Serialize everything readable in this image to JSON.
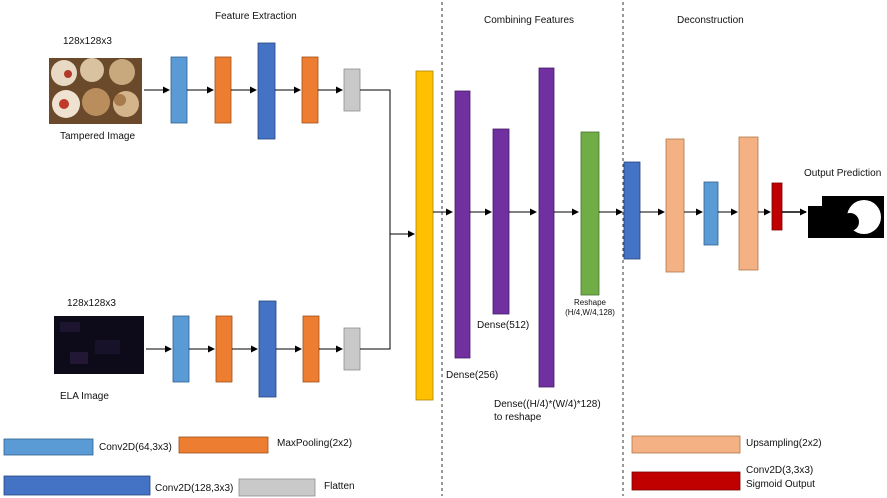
{
  "sections": {
    "feature_extraction": "Feature Extraction",
    "combining_features": "Combining Features",
    "deconstruction": "Deconstruction"
  },
  "inputs": {
    "tampered": {
      "size": "128x128x3",
      "caption": "Tampered Image"
    },
    "ela": {
      "size": "128x128x3",
      "caption": "ELA Image"
    }
  },
  "layers": {
    "dense_256": "Dense(256)",
    "dense_512": "Dense(512)",
    "dense_reshape_line1": "Dense((H/4)*(W/4)*128)",
    "dense_reshape_line2": "to reshape",
    "reshape_line1": "Reshape",
    "reshape_line2": "(H/4,W/4,128)"
  },
  "output": {
    "label": "Output Prediction"
  },
  "legend": {
    "conv64": "Conv2D(64,3x3)",
    "maxpool": "MaxPooling(2x2)",
    "conv128": "Conv2D(128,3x3)",
    "flatten": "Flatten",
    "upsampling": "Upsampling(2x2)",
    "conv3_line1": "Conv2D(3,3x3)",
    "conv3_line2": "Sigmoid Output"
  },
  "colors": {
    "conv64": "#5b9bd5",
    "maxpool": "#ed7d31",
    "conv128": "#4472c4",
    "flatten": "#c9c9c9",
    "concat": "#ffc000",
    "dense": "#7030a0",
    "reshape": "#70ad47",
    "upsampling": "#f4b183",
    "conv3": "#c00000"
  }
}
